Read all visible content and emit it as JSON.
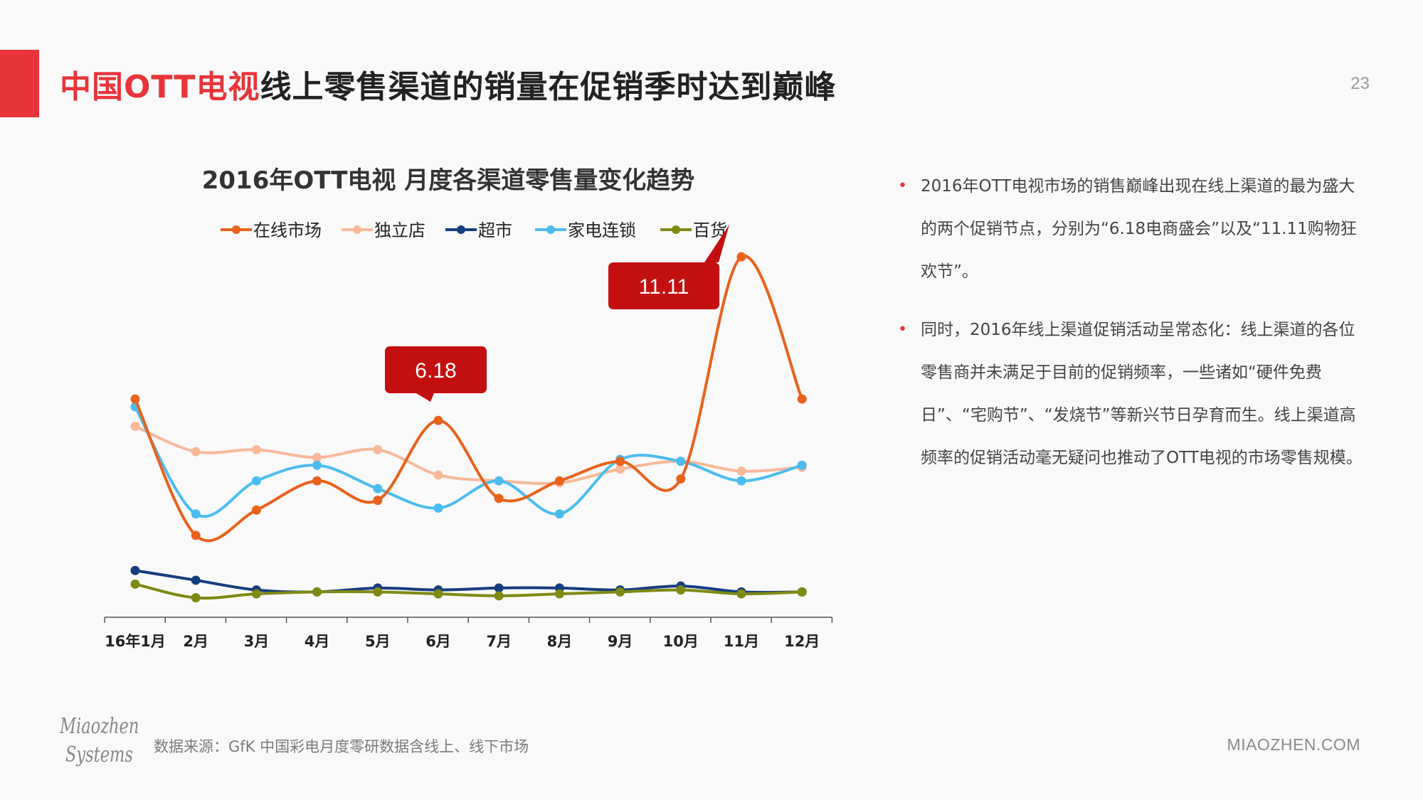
{
  "slide": {
    "title_highlight": "中国OTT电视",
    "title_rest": "线上零售渠道的销量在促销季时达到巅峰",
    "page_number": "23"
  },
  "bullets": [
    "2016年OTT电视市场的销售巅峰出现在线上渠道的最为盛大的两个促销节点，分别为“6.18电商盛会”以及“11.11购物狂欢节”。",
    "同时，2016年线上渠道促销活动呈常态化：线上渠道的各位零售商并未满足于目前的促销频率，一些诸如“硬件免费日”、“宅购节”、“发烧节”等新兴节日孕育而生。线上渠道高频率的促销活动毫无疑问也推动了OTT电视的市场零售规模。"
  ],
  "footer": {
    "source": "数据来源：GfK 中国彩电月度零研数据含线上、线下市场",
    "url": "MIAOZHEN.COM",
    "logo_line1": "Miaozhen",
    "logo_line2": "Systems"
  },
  "chart_data": {
    "type": "line",
    "title": "2016年OTT电视 月度各渠道零售量变化趋势",
    "categories": [
      "16年1月",
      "2月",
      "3月",
      "4月",
      "5月",
      "6月",
      "7月",
      "8月",
      "9月",
      "10月",
      "11月",
      "12月"
    ],
    "ylim": [
      0,
      100
    ],
    "grid": false,
    "legend_position": "top",
    "series": [
      {
        "name": "在线市场",
        "color": "#e8621c",
        "values": [
          56,
          21,
          27.5,
          35,
          30,
          50.5,
          30.5,
          35,
          40,
          35.5,
          92.5,
          56
        ]
      },
      {
        "name": "独立店",
        "color": "#f7b99a",
        "values": [
          49,
          42.5,
          43,
          41,
          43,
          36.5,
          35,
          34.5,
          38,
          40,
          37.5,
          38.5
        ]
      },
      {
        "name": "超市",
        "color": "#163e7e",
        "values": [
          12,
          9.5,
          7,
          6.5,
          7.5,
          7,
          7.5,
          7.5,
          7,
          8,
          6.5,
          6.5
        ]
      },
      {
        "name": "家电连锁",
        "color": "#4cbcee",
        "values": [
          54,
          26.5,
          35,
          39,
          33,
          28,
          35,
          26.5,
          40.5,
          40,
          35,
          39
        ]
      },
      {
        "name": "百货",
        "color": "#7e8a14",
        "values": [
          8.5,
          5,
          6,
          6.5,
          6.5,
          6,
          5.5,
          6,
          6.5,
          7,
          6,
          6.5
        ]
      }
    ],
    "callouts": [
      {
        "label": "6.18",
        "color": "#c40f10"
      },
      {
        "label": "11.11",
        "color": "#c40f10"
      }
    ]
  }
}
